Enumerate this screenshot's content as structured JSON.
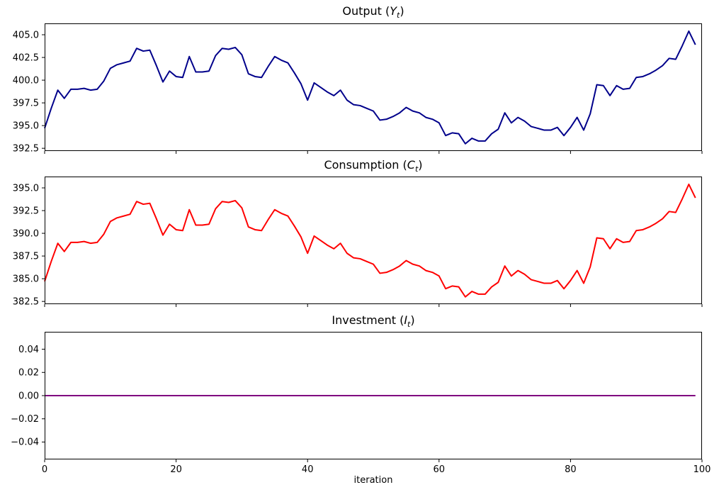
{
  "figure": {
    "background": "#ffffff",
    "xlabel": "iteration",
    "xlim": [
      0,
      100
    ],
    "xticks": [
      0,
      20,
      40,
      60,
      80,
      100
    ],
    "xtick_labels": [
      "0",
      "20",
      "40",
      "60",
      "80",
      "100"
    ],
    "axis_color": "#000000",
    "grid": false,
    "legend": "none"
  },
  "chart_data": [
    {
      "id": "output",
      "type": "line",
      "title": {
        "prefix": "Output (",
        "var": "Y",
        "sub": "t",
        "suffix": ")"
      },
      "color": "#00008B",
      "x_start": 0,
      "x_step": 1,
      "ylim": [
        392.2,
        406.25
      ],
      "yticks": [
        392.5,
        395.0,
        397.5,
        400.0,
        402.5,
        405.0
      ],
      "ytick_labels": [
        "392.5",
        "395.0",
        "397.5",
        "400.0",
        "402.5",
        "405.0"
      ],
      "show_xtick_labels": false,
      "values": [
        394.7,
        396.9,
        398.9,
        398.0,
        399.0,
        399.0,
        399.1,
        398.9,
        399.0,
        399.9,
        401.3,
        401.7,
        401.9,
        402.1,
        403.5,
        403.2,
        403.3,
        401.6,
        399.8,
        401.0,
        400.4,
        400.3,
        402.6,
        400.9,
        400.9,
        401.0,
        402.7,
        403.5,
        403.4,
        403.6,
        402.8,
        400.7,
        400.4,
        400.3,
        401.5,
        402.6,
        402.2,
        401.9,
        400.8,
        399.6,
        397.8,
        399.7,
        399.2,
        398.7,
        398.3,
        398.9,
        397.8,
        397.3,
        397.2,
        396.9,
        396.6,
        395.6,
        395.7,
        396.0,
        396.4,
        397.0,
        396.6,
        396.4,
        395.9,
        395.7,
        395.3,
        393.9,
        394.2,
        394.1,
        393.0,
        393.6,
        393.3,
        393.3,
        394.1,
        394.6,
        396.4,
        395.3,
        395.9,
        395.5,
        394.9,
        394.7,
        394.5,
        394.5,
        394.8,
        393.9,
        394.8,
        395.9,
        394.5,
        396.3,
        399.5,
        399.4,
        398.3,
        399.4,
        399.0,
        399.1,
        400.3,
        400.4,
        400.7,
        401.1,
        401.6,
        402.4,
        402.3,
        403.8,
        405.4,
        403.9
      ]
    },
    {
      "id": "consumption",
      "type": "line",
      "title": {
        "prefix": "Consumption (",
        "var": "C",
        "sub": "t",
        "suffix": ")"
      },
      "color": "#FF0000",
      "x_start": 0,
      "x_step": 1,
      "ylim": [
        382.2,
        396.25
      ],
      "yticks": [
        382.5,
        385.0,
        387.5,
        390.0,
        392.5,
        395.0
      ],
      "ytick_labels": [
        "382.5",
        "385.0",
        "387.5",
        "390.0",
        "392.5",
        "395.0"
      ],
      "show_xtick_labels": false,
      "values": [
        384.7,
        386.9,
        388.9,
        388.0,
        389.0,
        389.0,
        389.1,
        388.9,
        389.0,
        389.9,
        391.3,
        391.7,
        391.9,
        392.1,
        393.5,
        393.2,
        393.3,
        391.6,
        389.8,
        391.0,
        390.4,
        390.3,
        392.6,
        390.9,
        390.9,
        391.0,
        392.7,
        393.5,
        393.4,
        393.6,
        392.8,
        390.7,
        390.4,
        390.3,
        391.5,
        392.6,
        392.2,
        391.9,
        390.8,
        389.6,
        387.8,
        389.7,
        389.2,
        388.7,
        388.3,
        388.9,
        387.8,
        387.3,
        387.2,
        386.9,
        386.6,
        385.6,
        385.7,
        386.0,
        386.4,
        387.0,
        386.6,
        386.4,
        385.9,
        385.7,
        385.3,
        383.9,
        384.2,
        384.1,
        383.0,
        383.6,
        383.3,
        383.3,
        384.1,
        384.6,
        386.4,
        385.3,
        385.9,
        385.5,
        384.9,
        384.7,
        384.5,
        384.5,
        384.8,
        383.9,
        384.8,
        385.9,
        384.5,
        386.3,
        389.5,
        389.4,
        388.3,
        389.4,
        389.0,
        389.1,
        390.3,
        390.4,
        390.7,
        391.1,
        391.6,
        392.4,
        392.3,
        393.8,
        395.4,
        393.9
      ]
    },
    {
      "id": "investment",
      "type": "line",
      "title": {
        "prefix": "Investment (",
        "var": "I",
        "sub": "t",
        "suffix": ")"
      },
      "color": "#800080",
      "x_start": 0,
      "x_step": 1,
      "ylim": [
        -0.055,
        0.055
      ],
      "yticks": [
        -0.04,
        -0.02,
        0.0,
        0.02,
        0.04
      ],
      "ytick_labels": [
        "−0.04",
        "−0.02",
        "0.00",
        "0.02",
        "0.04"
      ],
      "show_xtick_labels": true,
      "values": [
        0,
        0,
        0,
        0,
        0,
        0,
        0,
        0,
        0,
        0,
        0,
        0,
        0,
        0,
        0,
        0,
        0,
        0,
        0,
        0,
        0,
        0,
        0,
        0,
        0,
        0,
        0,
        0,
        0,
        0,
        0,
        0,
        0,
        0,
        0,
        0,
        0,
        0,
        0,
        0,
        0,
        0,
        0,
        0,
        0,
        0,
        0,
        0,
        0,
        0,
        0,
        0,
        0,
        0,
        0,
        0,
        0,
        0,
        0,
        0,
        0,
        0,
        0,
        0,
        0,
        0,
        0,
        0,
        0,
        0,
        0,
        0,
        0,
        0,
        0,
        0,
        0,
        0,
        0,
        0,
        0,
        0,
        0,
        0,
        0,
        0,
        0,
        0,
        0,
        0,
        0,
        0,
        0,
        0,
        0,
        0,
        0,
        0,
        0,
        0
      ]
    }
  ]
}
